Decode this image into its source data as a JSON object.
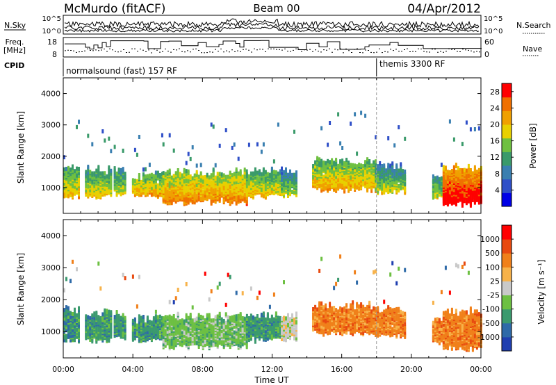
{
  "header": {
    "station": "McMurdo (fitACF)",
    "beam": "Beam 00",
    "date": "04/Apr/2012"
  },
  "strip_panels": {
    "nsky": {
      "left_label": "N.Sky",
      "left_ticks": [
        "10^5",
        "10^0"
      ],
      "right_ticks": [
        "10^5",
        "10^0"
      ],
      "right_label": "N.Search"
    },
    "freq": {
      "left_label_1": "Freq.",
      "left_label_2": "[MHz]",
      "left_ticks": [
        "18",
        "8"
      ],
      "right_ticks": [
        "60",
        "0"
      ],
      "right_label": "Nave"
    },
    "cpid": {
      "label": "CPID",
      "programs": [
        {
          "name": "normalsound (fast) 157 RF",
          "start_hour": 0
        },
        {
          "name": "themis 3300 RF",
          "start_hour": 18.0
        }
      ]
    }
  },
  "chart_data": [
    {
      "type": "heatmap",
      "name": "power",
      "title": "",
      "ylabel": "Slant Range [km]",
      "xlabel": "",
      "x_unit": "hours UT",
      "xlim": [
        0,
        24
      ],
      "ylim": [
        180,
        4500
      ],
      "yticks": [
        1000,
        2000,
        3000,
        4000
      ],
      "grid": false,
      "colorbar": {
        "label": "Power [dB]",
        "tick_labels": [
          "4",
          "8",
          "12",
          "16",
          "20",
          "24",
          "28"
        ],
        "range": [
          0,
          30
        ],
        "colors": [
          "#0000e6",
          "#2f4fc8",
          "#3a7fb0",
          "#3a9a6a",
          "#6fc040",
          "#e8d000",
          "#f0a000",
          "#f07000",
          "#ff0000"
        ]
      },
      "echo_bands": [
        {
          "start": 0.0,
          "end": 0.95,
          "lower": 700,
          "upper": 1600,
          "level": 16
        },
        {
          "start": 1.25,
          "end": 2.7,
          "lower": 700,
          "upper": 1500,
          "level": 15
        },
        {
          "start": 2.9,
          "end": 3.6,
          "lower": 750,
          "upper": 1500,
          "level": 14
        },
        {
          "start": 3.95,
          "end": 5.7,
          "lower": 720,
          "upper": 1300,
          "level": 18
        },
        {
          "start": 5.7,
          "end": 10.5,
          "lower": 500,
          "upper": 1400,
          "level": 20
        },
        {
          "start": 10.5,
          "end": 12.5,
          "lower": 700,
          "upper": 1450,
          "level": 16
        },
        {
          "start": 12.5,
          "end": 13.4,
          "lower": 750,
          "upper": 1450,
          "level": 12
        },
        {
          "start": 14.3,
          "end": 17.9,
          "lower": 900,
          "upper": 1750,
          "level": 18
        },
        {
          "start": 17.9,
          "end": 19.6,
          "lower": 850,
          "upper": 1600,
          "level": 13
        },
        {
          "start": 21.2,
          "end": 21.8,
          "lower": 600,
          "upper": 1300,
          "level": 14
        },
        {
          "start": 21.8,
          "end": 24.0,
          "lower": 450,
          "upper": 1550,
          "level": 27
        }
      ]
    },
    {
      "type": "heatmap",
      "name": "velocity",
      "title": "",
      "ylabel": "Slant Range [km]",
      "xlabel": "Time UT",
      "x_unit": "hours UT",
      "xlim": [
        0,
        24
      ],
      "ylim": [
        180,
        4500
      ],
      "yticks": [
        1000,
        2000,
        3000,
        4000
      ],
      "xtick_labels": [
        "00:00",
        "04:00",
        "08:00",
        "12:00",
        "16:00",
        "20:00",
        "00:00"
      ],
      "grid": false,
      "colorbar": {
        "label": "Velocity [m s⁻¹]",
        "tick_labels": [
          "1000",
          "500",
          "100",
          "25",
          "-25",
          "-100",
          "-500",
          "-1000"
        ],
        "colors": [
          "#1f3fb0",
          "#2e6aa8",
          "#3b9a6e",
          "#6dc042",
          "#c9c9c9",
          "#f7b24a",
          "#f0801a",
          "#e84a10",
          "#ff0000"
        ]
      },
      "echo_bands": [
        {
          "start": 0.0,
          "end": 0.95,
          "lower": 700,
          "upper": 1600,
          "level": 2
        },
        {
          "start": 1.25,
          "end": 2.7,
          "lower": 700,
          "upper": 1500,
          "level": 2
        },
        {
          "start": 2.9,
          "end": 3.6,
          "lower": 750,
          "upper": 1500,
          "level": 2
        },
        {
          "start": 3.95,
          "end": 5.7,
          "lower": 720,
          "upper": 1300,
          "level": 2
        },
        {
          "start": 5.7,
          "end": 10.5,
          "lower": 500,
          "upper": 1400,
          "level": 3
        },
        {
          "start": 10.5,
          "end": 12.5,
          "lower": 700,
          "upper": 1450,
          "level": 2
        },
        {
          "start": 12.5,
          "end": 13.4,
          "lower": 750,
          "upper": 1450,
          "level": 4
        },
        {
          "start": 14.3,
          "end": 17.9,
          "lower": 900,
          "upper": 1750,
          "level": 6
        },
        {
          "start": 17.9,
          "end": 19.6,
          "lower": 850,
          "upper": 1600,
          "level": 6
        },
        {
          "start": 21.2,
          "end": 21.8,
          "lower": 600,
          "upper": 1300,
          "level": 6
        },
        {
          "start": 21.8,
          "end": 24.0,
          "lower": 450,
          "upper": 1550,
          "level": 6
        }
      ]
    }
  ]
}
